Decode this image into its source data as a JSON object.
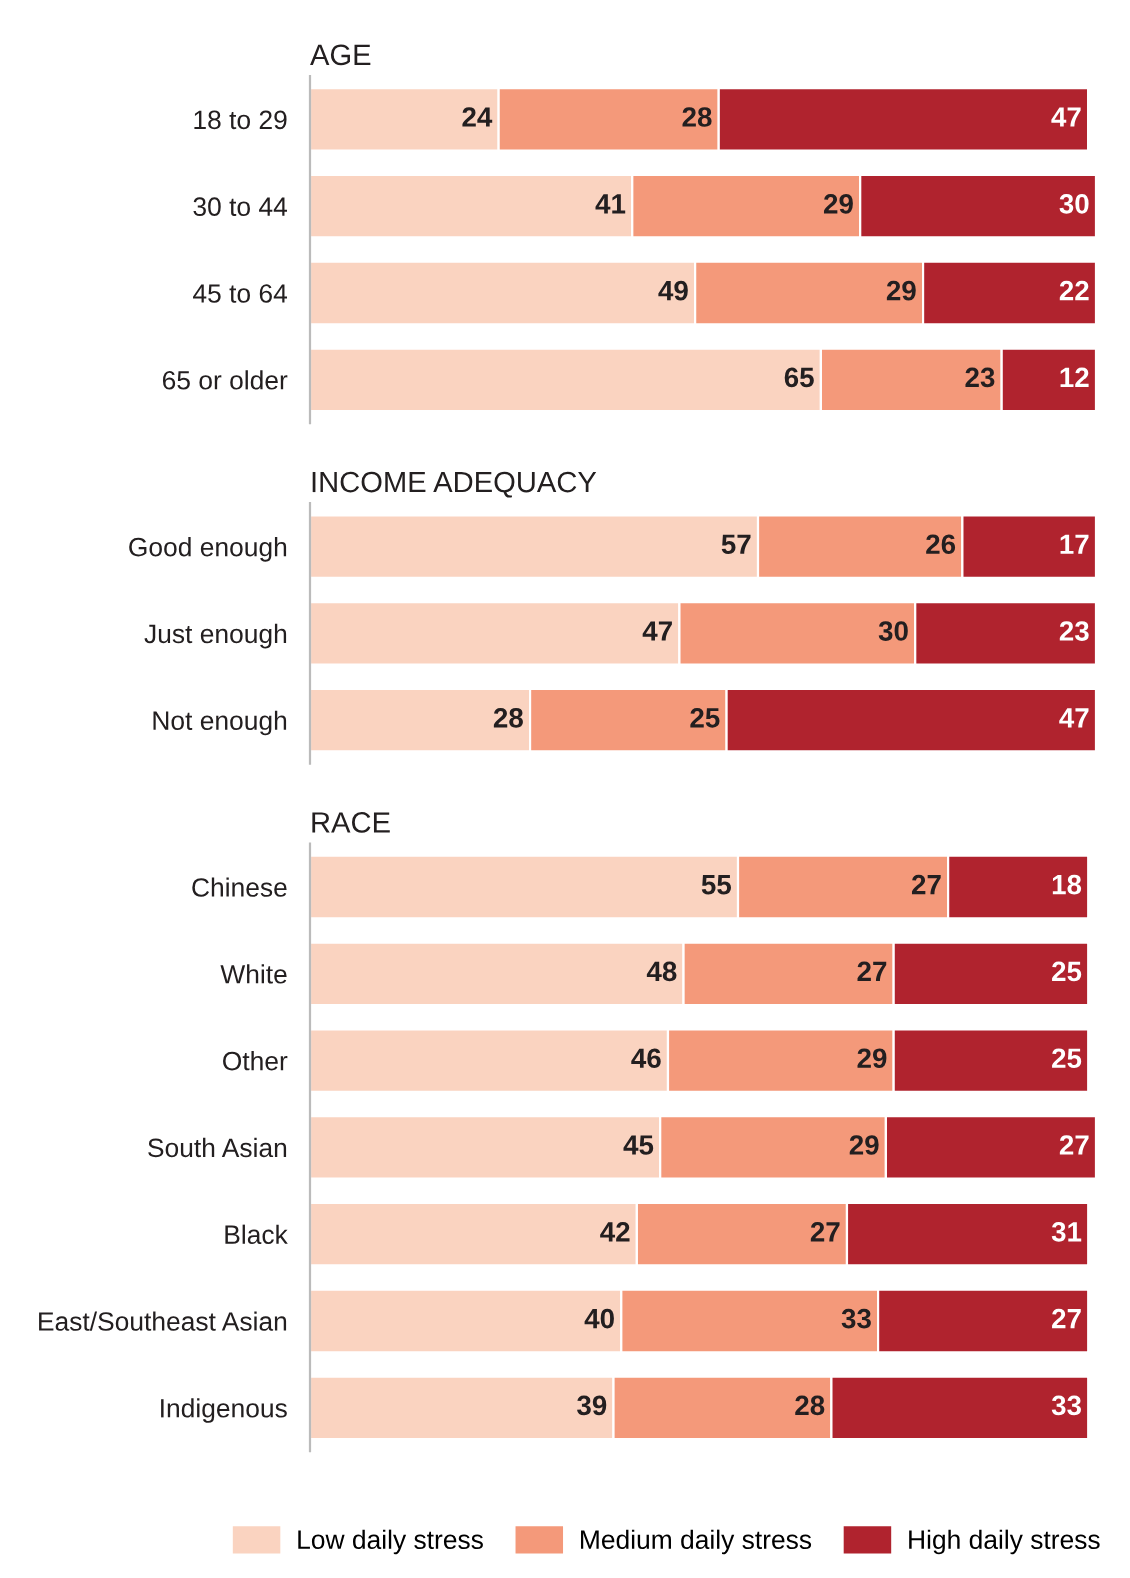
{
  "chart_data": [
    {
      "type": "bar",
      "title": "AGE",
      "orientation": "horizontal",
      "stacked": true,
      "data_labels": true,
      "tick_labels": "y",
      "categories": [
        "18 to 29",
        "30 to 44",
        "45 to 64",
        "65 or older"
      ],
      "series": [
        {
          "color": "#fad3c0",
          "values": [
            24,
            41,
            49,
            65
          ]
        },
        {
          "color": "#f4997a",
          "values": [
            28,
            29,
            29,
            23
          ]
        },
        {
          "color": "#b0232e",
          "values": [
            47,
            30,
            22,
            12
          ]
        }
      ]
    },
    {
      "type": "bar",
      "title": "INCOME ADEQUACY",
      "orientation": "horizontal",
      "stacked": true,
      "data_labels": true,
      "tick_labels": "y",
      "categories": [
        "Good enough",
        "Just enough",
        "Not enough"
      ],
      "series": [
        {
          "color": "#fad3c0",
          "values": [
            57,
            47,
            28
          ]
        },
        {
          "color": "#f4997a",
          "values": [
            26,
            30,
            25
          ]
        },
        {
          "color": "#b0232e",
          "values": [
            17,
            23,
            47
          ]
        }
      ]
    },
    {
      "type": "bar",
      "title": "RACE",
      "orientation": "horizontal",
      "stacked": true,
      "data_labels": true,
      "tick_labels": "y",
      "legend": "bottom",
      "categories": [
        "Chinese",
        "White",
        "Other",
        "South Asian",
        "Black",
        "East/Southeast Asian",
        "Indigenous"
      ],
      "series": [
        {
          "name": "Low daily stress",
          "color": "#fad3c0",
          "values": [
            55,
            48,
            46,
            45,
            42,
            40,
            39
          ]
        },
        {
          "name": "Medium daily stress",
          "color": "#f4997a",
          "values": [
            27,
            27,
            29,
            29,
            27,
            33,
            28
          ]
        },
        {
          "name": "High daily stress",
          "color": "#b0232e",
          "values": [
            18,
            25,
            25,
            27,
            31,
            27,
            33
          ]
        }
      ]
    }
  ]
}
